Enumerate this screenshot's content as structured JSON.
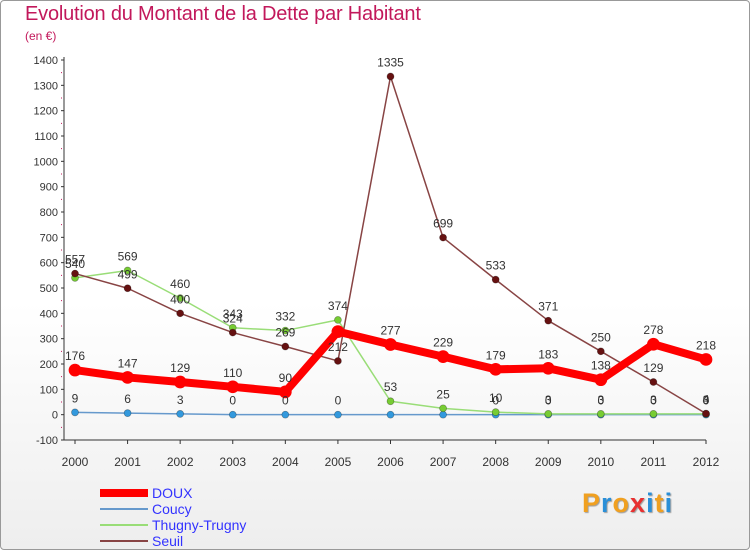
{
  "header": {
    "title": "Evolution du Montant de la Dette par Habitant",
    "subtitle": "(en €)"
  },
  "logo": {
    "text": "Proxiti",
    "letters": [
      {
        "ch": "P",
        "color": "#f0a020"
      },
      {
        "ch": "r",
        "color": "#2a8fd8"
      },
      {
        "ch": "o",
        "color": "#f0a020"
      },
      {
        "ch": "x",
        "color": "#e83030"
      },
      {
        "ch": "i",
        "color": "#2a8fd8"
      },
      {
        "ch": "t",
        "color": "#f0a020"
      },
      {
        "ch": "i",
        "color": "#2a8fd8"
      }
    ]
  },
  "chart_data": {
    "type": "line",
    "title": "Evolution du Montant de la Dette par Habitant",
    "subtitle": "(en €)",
    "x": [
      "2000",
      "2001",
      "2002",
      "2003",
      "2004",
      "2005",
      "2006",
      "2007",
      "2008",
      "2009",
      "2010",
      "2011",
      "2012"
    ],
    "ylim": [
      -100,
      1400
    ],
    "yticks": [
      -100,
      0,
      100,
      200,
      300,
      400,
      500,
      600,
      700,
      800,
      900,
      1000,
      1100,
      1200,
      1300,
      1400
    ],
    "grid": false,
    "legend_position": "bottom-left",
    "series": [
      {
        "name": "DOUX",
        "color": "#ff0000",
        "line_width": 8,
        "marker": "#ff0000",
        "label_color": "#333333",
        "values": [
          176,
          147,
          129,
          110,
          90,
          328,
          277,
          229,
          179,
          183,
          138,
          278,
          218
        ],
        "labels": [
          "176",
          "147",
          "129",
          "110",
          "90",
          "",
          "277",
          "229",
          "179",
          "183",
          "138",
          "278",
          "218"
        ]
      },
      {
        "name": "Coucy",
        "color": "#6699cc",
        "line_width": 1.5,
        "marker": "#3399dd",
        "label_color": "#333333",
        "values": [
          9,
          6,
          3,
          0,
          0,
          0,
          0,
          0,
          0,
          0,
          0,
          0,
          0
        ],
        "labels": [
          "9",
          "6",
          "3",
          "0",
          "0",
          "0",
          "",
          "",
          "0",
          "0",
          "0",
          "0",
          "0"
        ]
      },
      {
        "name": "Thugny-Trugny",
        "color": "#99dd77",
        "line_width": 1.5,
        "marker": "#77cc33",
        "label_color": "#333333",
        "values": [
          540,
          569,
          460,
          343,
          332,
          374,
          53,
          25,
          10,
          3,
          3,
          3,
          3
        ],
        "labels": [
          "540",
          "569",
          "460",
          "343",
          "332",
          "374",
          "53",
          "25",
          "10",
          "3",
          "3",
          "3",
          "3"
        ]
      },
      {
        "name": "Seuil",
        "color": "#884444",
        "line_width": 1.5,
        "marker": "#661111",
        "label_color": "#333333",
        "values": [
          557,
          499,
          400,
          324,
          269,
          212,
          1335,
          699,
          533,
          371,
          250,
          129,
          4
        ],
        "labels": [
          "557",
          "499",
          "400",
          "324",
          "269",
          "212",
          "1335",
          "699",
          "533",
          "371",
          "250",
          "129",
          "4"
        ]
      }
    ]
  }
}
